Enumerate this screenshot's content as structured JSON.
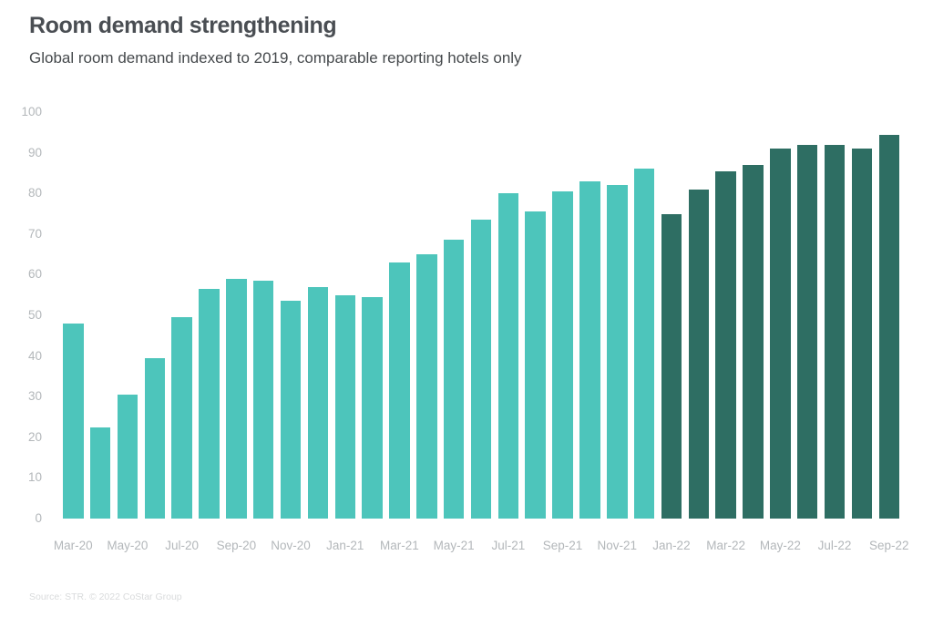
{
  "header": {
    "title": "Room demand strengthening",
    "subtitle": "Global room demand indexed to 2019, comparable reporting hotels only"
  },
  "footer": {
    "source": "Source: STR. © 2022 CoStar Group"
  },
  "chart_data": {
    "type": "bar",
    "title": "Room demand strengthening",
    "subtitle": "Global room demand indexed to 2019, comparable reporting hotels only",
    "categories": [
      "Mar-20",
      "Apr-20",
      "May-20",
      "Jun-20",
      "Jul-20",
      "Aug-20",
      "Sep-20",
      "Oct-20",
      "Nov-20",
      "Dec-20",
      "Jan-21",
      "Feb-21",
      "Mar-21",
      "Apr-21",
      "May-21",
      "Jun-21",
      "Jul-21",
      "Aug-21",
      "Sep-21",
      "Oct-21",
      "Nov-21",
      "Dec-21",
      "Jan-22",
      "Feb-22",
      "Mar-22",
      "Apr-22",
      "May-22",
      "Jun-22",
      "Jul-22",
      "Aug-22",
      "Sep-22"
    ],
    "values": [
      48,
      22.5,
      30.5,
      39.5,
      49.5,
      56.5,
      59,
      58.5,
      53.5,
      57,
      55,
      54.5,
      63,
      65,
      68.5,
      73.5,
      80,
      75.5,
      80.5,
      83,
      82,
      86,
      75,
      81,
      85.5,
      87,
      91,
      92,
      92,
      91,
      94.5
    ],
    "bar_colors": [
      "#4dc5bb",
      "#4dc5bb",
      "#4dc5bb",
      "#4dc5bb",
      "#4dc5bb",
      "#4dc5bb",
      "#4dc5bb",
      "#4dc5bb",
      "#4dc5bb",
      "#4dc5bb",
      "#4dc5bb",
      "#4dc5bb",
      "#4dc5bb",
      "#4dc5bb",
      "#4dc5bb",
      "#4dc5bb",
      "#4dc5bb",
      "#4dc5bb",
      "#4dc5bb",
      "#4dc5bb",
      "#4dc5bb",
      "#4dc5bb",
      "#2e6e63",
      "#2e6e63",
      "#2e6e63",
      "#2e6e63",
      "#2e6e63",
      "#2e6e63",
      "#2e6e63",
      "#2e6e63",
      "#2e6e63"
    ],
    "color_legend": {
      "light_teal": "#4dc5bb",
      "dark_teal": "#2e6e63"
    },
    "xlabel": "",
    "ylabel": "",
    "ylim": [
      0,
      100
    ],
    "yticks": [
      0,
      10,
      20,
      30,
      40,
      50,
      60,
      70,
      80,
      90,
      100
    ],
    "x_tick_every": 2,
    "grid": false,
    "legend": false,
    "axis_text_color": "#b3b7ba",
    "title_color": "#4a4e53",
    "source_color": "#d9dbdc"
  }
}
